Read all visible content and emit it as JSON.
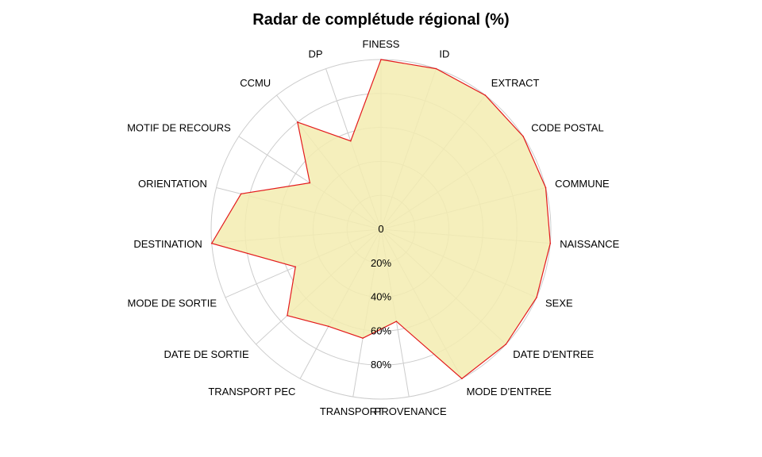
{
  "chart_data": {
    "type": "radar",
    "title": "Radar de complétude régional (%)",
    "categories": [
      "FINESS",
      "ID",
      "EXTRACT",
      "CODE POSTAL",
      "COMMUNE",
      "NAISSANCE",
      "SEXE",
      "DATE D'ENTREE",
      "MODE D'ENTREE",
      "PROVENANCE",
      "TRANSPORT",
      "TRANSPORT PEC",
      "DATE DE SORTIE",
      "MODE DE SORTIE",
      "DESTINATION",
      "ORIENTATION",
      "MOTIF DE RECOURS",
      "CCMU",
      "DP"
    ],
    "series": [
      {
        "values": [
          100,
          100,
          100,
          100,
          100,
          100,
          100,
          100,
          100,
          55,
          65,
          65,
          75,
          55,
          100,
          85,
          50,
          80,
          55
        ]
      }
    ],
    "rlim": [
      0,
      100
    ],
    "ticks": [
      0,
      20,
      40,
      60,
      80
    ],
    "tick_labels": [
      "0",
      "20%",
      "40%",
      "60%",
      "80%"
    ],
    "colors": {
      "fill": "#f3ecb0",
      "line": "#e31a1c",
      "grid": "#cccccc"
    }
  }
}
